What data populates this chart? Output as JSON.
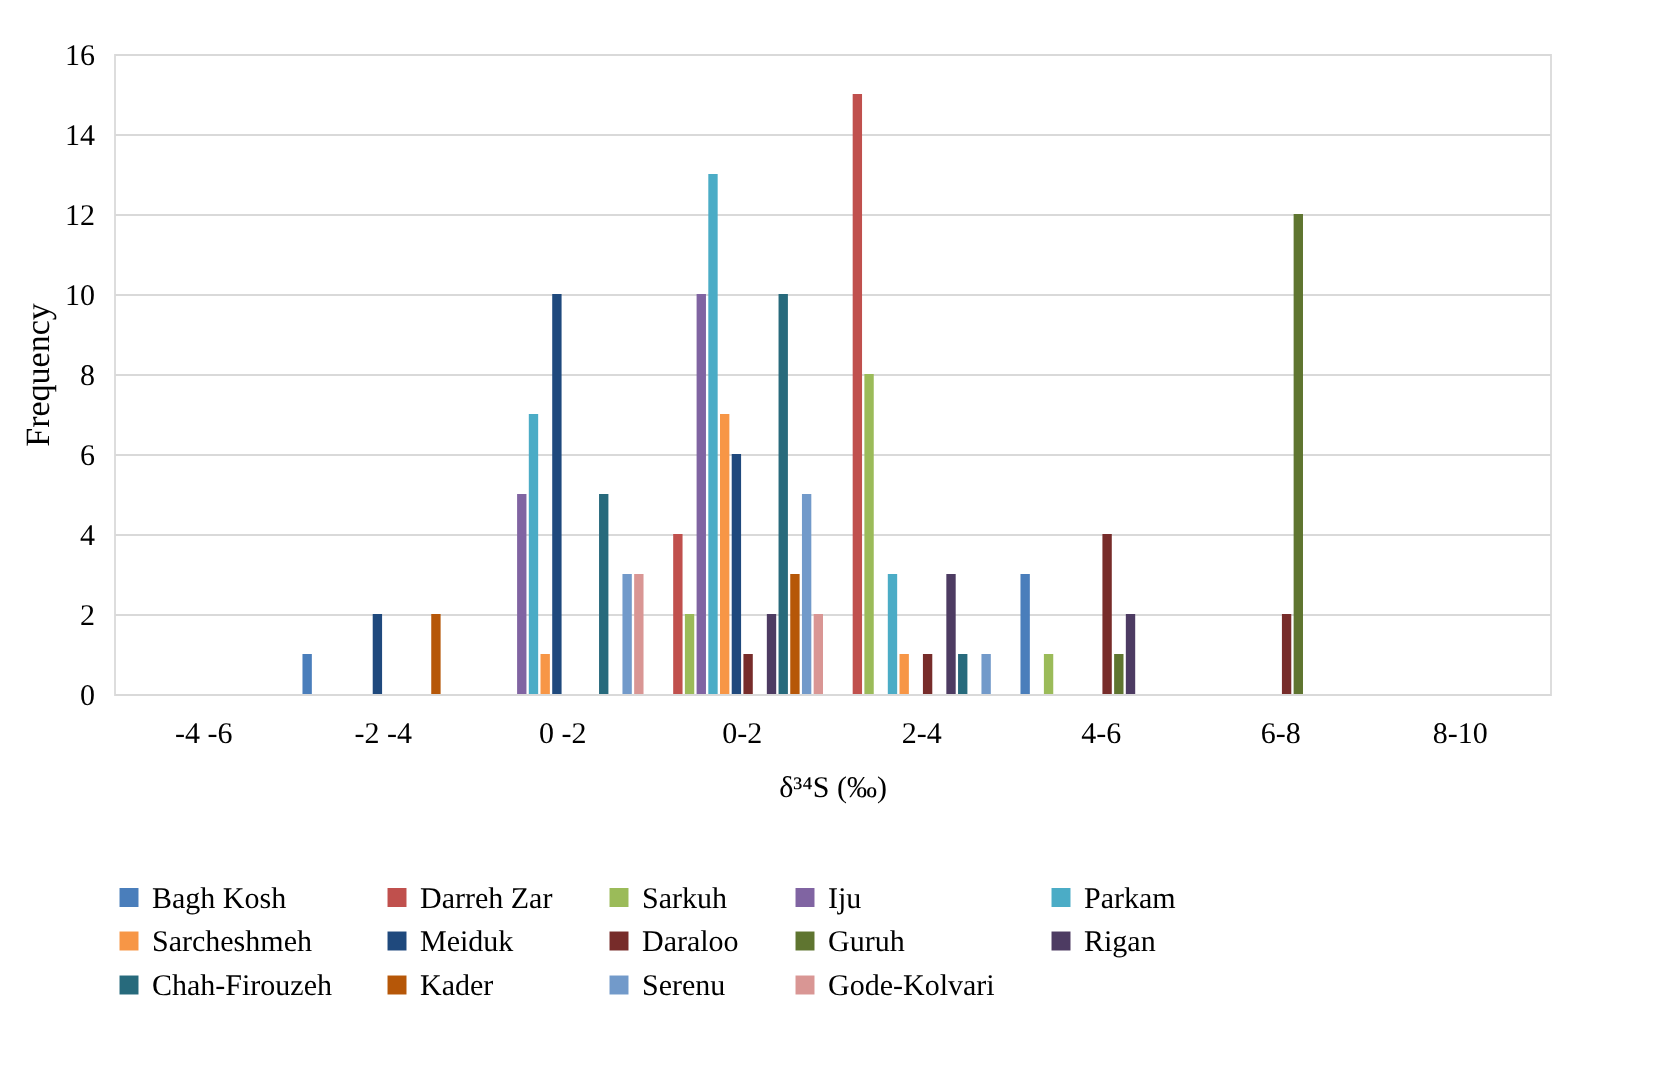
{
  "chart_data": {
    "type": "bar",
    "xlabel": "δ³⁴S (‰)",
    "ylabel": "Frequency",
    "categories": [
      "-4 -6",
      "-2 -4",
      "0 -2",
      "0-2",
      "2-4",
      "4-6",
      "6-8",
      "8-10"
    ],
    "ylim": [
      0,
      16
    ],
    "yticks": [
      0,
      2,
      4,
      6,
      8,
      10,
      12,
      14,
      16
    ],
    "grid": "y",
    "legend": "bottom",
    "series": [
      {
        "name": "Bagh Kosh",
        "color": "#4a7ebb",
        "values": [
          0,
          1,
          0,
          0,
          0,
          3,
          0,
          0
        ]
      },
      {
        "name": "Darreh Zar",
        "color": "#c0504d",
        "values": [
          0,
          0,
          0,
          4,
          15,
          0,
          0,
          0
        ]
      },
      {
        "name": "Sarkuh",
        "color": "#9bbb59",
        "values": [
          0,
          0,
          0,
          2,
          8,
          1,
          0,
          0
        ]
      },
      {
        "name": "Iju",
        "color": "#8064a2",
        "values": [
          0,
          0,
          5,
          10,
          0,
          0,
          0,
          0
        ]
      },
      {
        "name": "Parkam",
        "color": "#4bacc6",
        "values": [
          0,
          0,
          7,
          13,
          3,
          0,
          0,
          0
        ]
      },
      {
        "name": "Sarcheshmeh",
        "color": "#f79646",
        "values": [
          0,
          0,
          1,
          7,
          1,
          0,
          0,
          0
        ]
      },
      {
        "name": "Meiduk",
        "color": "#1f497d",
        "values": [
          0,
          2,
          10,
          6,
          0,
          0,
          0,
          0
        ]
      },
      {
        "name": "Daraloo",
        "color": "#772c2a",
        "values": [
          0,
          0,
          0,
          1,
          1,
          4,
          2,
          0
        ]
      },
      {
        "name": "Guruh",
        "color": "#5f7530",
        "values": [
          0,
          0,
          0,
          0,
          0,
          1,
          12,
          0
        ]
      },
      {
        "name": "Rigan",
        "color": "#4d3b62",
        "values": [
          0,
          0,
          0,
          2,
          3,
          2,
          0,
          0
        ]
      },
      {
        "name": "Chah-Firouzeh",
        "color": "#276a7c",
        "values": [
          0,
          0,
          5,
          10,
          1,
          0,
          0,
          0
        ]
      },
      {
        "name": "Kader",
        "color": "#b65708",
        "values": [
          0,
          2,
          0,
          3,
          0,
          0,
          0,
          0
        ]
      },
      {
        "name": "Serenu",
        "color": "#729aca",
        "values": [
          0,
          0,
          3,
          5,
          1,
          0,
          0,
          0
        ]
      },
      {
        "name": "Gode-Kolvari",
        "color": "#d99694",
        "values": [
          0,
          0,
          3,
          2,
          0,
          0,
          0,
          0
        ]
      }
    ]
  }
}
